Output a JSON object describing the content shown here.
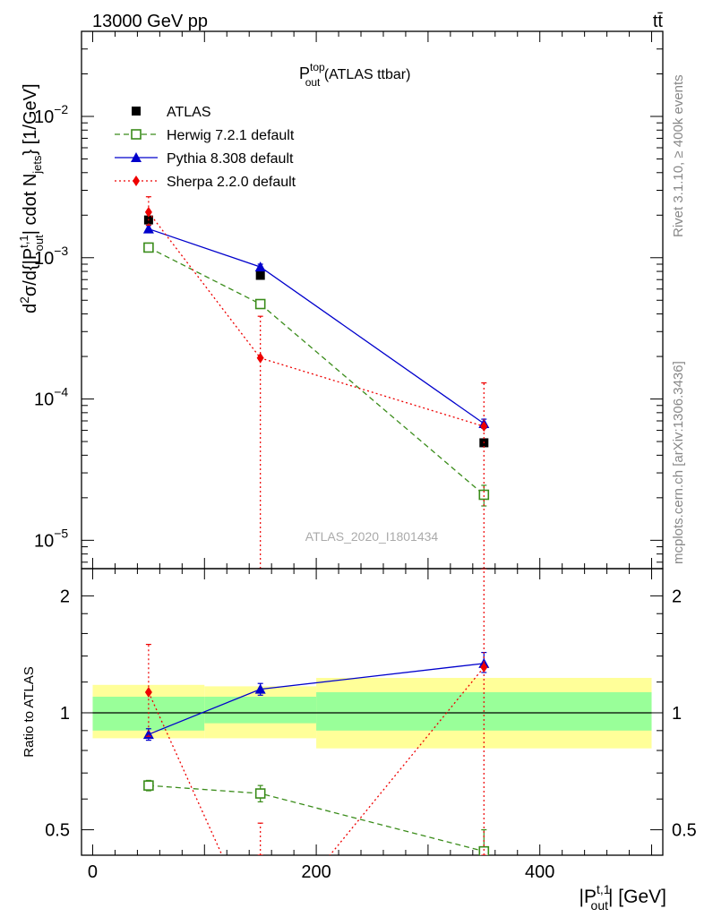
{
  "header": {
    "energy_label": "13000 GeV pp",
    "process_label": "tt̄"
  },
  "side_labels": {
    "rivet": "Rivet 3.1.10, ≥ 400k events",
    "mcplots": "mcplots.cern.ch [arXiv:1306.3436]"
  },
  "chart_data": [
    {
      "type": "line",
      "title": {
        "main": "P",
        "sup": "top",
        "sub": "out",
        "suffix": " (ATLAS ttbar)"
      },
      "analysis_id": "ATLAS_2020_I1801434",
      "ylabel": "d²σ/d{|P_out^t,1| cdot N_jets} [1/GeV] (1/σ normalized)",
      "yscale": "log",
      "ylim": [
        6.3e-06,
        0.04
      ],
      "xlim": [
        -10,
        510
      ],
      "y_tick_labels": [
        {
          "base": "10",
          "exp": "−2",
          "value": 0.01
        },
        {
          "base": "10",
          "exp": "−3",
          "value": 0.001
        },
        {
          "base": "10",
          "exp": "−4",
          "value": 0.0001
        },
        {
          "base": "10",
          "exp": "−5",
          "value": 1e-05
        }
      ],
      "legend_position": "top-left",
      "series": [
        {
          "name": "ATLAS",
          "color": "#000000",
          "marker": "square-filled",
          "x": [
            50,
            150,
            350
          ],
          "y": [
            0.00185,
            0.00075,
            4.9e-05
          ]
        },
        {
          "name": "Herwig 7.2.1 default",
          "color": "#3a8c1a",
          "marker": "square-open",
          "line": "dashed",
          "x": [
            50,
            150,
            350
          ],
          "y": [
            0.00118,
            0.00047,
            2.1e-05
          ],
          "err_low": [
            8e-05,
            3e-05,
            3.5e-06
          ],
          "err_high": [
            8e-05,
            3e-05,
            3.5e-06
          ]
        },
        {
          "name": "Pythia 8.308 default",
          "color": "#0000cc",
          "marker": "triangle-filled",
          "line": "solid",
          "x": [
            50,
            150,
            350
          ],
          "y": [
            0.0016,
            0.00086,
            6.7e-05
          ],
          "err_low": [
            9e-05,
            4e-05,
            5e-06
          ],
          "err_high": [
            9e-05,
            4e-05,
            5e-06
          ]
        },
        {
          "name": "Sherpa 2.2.0 default",
          "color": "#ee0000",
          "marker": "diamond-filled",
          "line": "dotted",
          "x": [
            50,
            150,
            350
          ],
          "y": [
            0.0021,
            0.000195,
            6.4e-05
          ],
          "err_low": [
            0.0004,
            0.000195,
            6.4e-05
          ],
          "err_high": [
            0.0006,
            0.00019,
            6.6e-05
          ]
        }
      ]
    },
    {
      "type": "line",
      "ylabel": "Ratio to ATLAS",
      "xlabel": "|P_out^t,1| [GeV]",
      "xlabel_parts": {
        "pre": "|P",
        "sup": "t,1",
        "sub": "out",
        "post": "| [GeV]"
      },
      "xlim": [
        -10,
        510
      ],
      "ylim": [
        0.43,
        2.35
      ],
      "yscale": "log",
      "x_ticks": [
        0,
        200,
        400
      ],
      "y_ticks": [
        0.5,
        1,
        2
      ],
      "reference_line": 1,
      "bands": [
        {
          "x0": 0,
          "x1": 100,
          "green": [
            0.9,
            1.1
          ],
          "yellow": [
            0.86,
            1.18
          ]
        },
        {
          "x0": 100,
          "x1": 200,
          "green": [
            0.94,
            1.1
          ],
          "yellow": [
            0.86,
            1.17
          ]
        },
        {
          "x0": 200,
          "x1": 500,
          "green": [
            0.9,
            1.13
          ],
          "yellow": [
            0.81,
            1.23
          ]
        }
      ],
      "series": [
        {
          "name": "Herwig 7.2.1 default",
          "color": "#3a8c1a",
          "marker": "square-open",
          "line": "dashed",
          "x": [
            50,
            150,
            350
          ],
          "y": [
            0.65,
            0.62,
            0.44
          ],
          "err_low": [
            0.02,
            0.03,
            0.04
          ],
          "err_high": [
            0.02,
            0.03,
            0.06
          ]
        },
        {
          "name": "Pythia 8.308 default",
          "color": "#0000cc",
          "marker": "triangle-filled",
          "line": "solid",
          "x": [
            50,
            150,
            350
          ],
          "y": [
            0.88,
            1.15,
            1.34
          ],
          "err_low": [
            0.03,
            0.04,
            0.07
          ],
          "err_high": [
            0.03,
            0.04,
            0.09
          ]
        },
        {
          "name": "Sherpa 2.2.0 default",
          "color": "#ee0000",
          "marker": "diamond-filled",
          "line": "dotted",
          "x": [
            50,
            150,
            350
          ],
          "y": [
            1.13,
            0.26,
            1.31
          ],
          "err_low": [
            0.26,
            0.26,
            0.88
          ],
          "err_high": [
            0.37,
            0.26,
            1.4
          ]
        }
      ]
    }
  ]
}
